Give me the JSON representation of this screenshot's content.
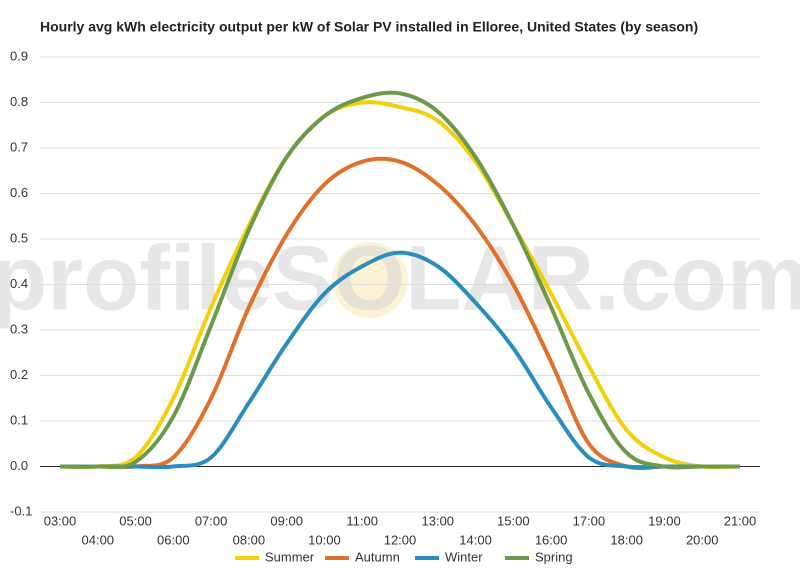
{
  "chart_data": {
    "type": "line",
    "title": "Hourly avg kWh electricity output per kW of Solar PV installed in Elloree, United States (by season)",
    "watermark": "profileSOLAR.com",
    "categories": [
      "03:00",
      "04:00",
      "05:00",
      "06:00",
      "07:00",
      "08:00",
      "09:00",
      "10:00",
      "11:00",
      "12:00",
      "13:00",
      "14:00",
      "15:00",
      "16:00",
      "17:00",
      "18:00",
      "19:00",
      "20:00",
      "21:00"
    ],
    "series": [
      {
        "name": "Summer",
        "color": "#f5cf0a",
        "values": [
          0,
          0,
          0.02,
          0.15,
          0.35,
          0.53,
          0.68,
          0.77,
          0.8,
          0.79,
          0.76,
          0.67,
          0.53,
          0.38,
          0.22,
          0.08,
          0.02,
          0,
          0
        ]
      },
      {
        "name": "Autumn",
        "color": "#e0712a",
        "values": [
          0,
          0,
          0,
          0.02,
          0.15,
          0.35,
          0.51,
          0.62,
          0.67,
          0.67,
          0.62,
          0.53,
          0.4,
          0.23,
          0.05,
          0,
          0,
          0,
          0
        ]
      },
      {
        "name": "Winter",
        "color": "#2a8dbd",
        "values": [
          0,
          0,
          0,
          0,
          0.02,
          0.14,
          0.27,
          0.38,
          0.44,
          0.47,
          0.44,
          0.36,
          0.26,
          0.13,
          0.02,
          0,
          0,
          0,
          0
        ]
      },
      {
        "name": "Spring",
        "color": "#6a9a4a",
        "values": [
          0,
          0,
          0.01,
          0.11,
          0.31,
          0.52,
          0.68,
          0.77,
          0.81,
          0.82,
          0.78,
          0.68,
          0.53,
          0.35,
          0.16,
          0.03,
          0,
          0,
          0
        ]
      }
    ],
    "ylim": [
      -0.1,
      0.9
    ],
    "yticks": [
      -0.1,
      {
        "value": 0,
        "label": "0.0"
      },
      0.1,
      0.2,
      0.3,
      0.4,
      0.5,
      0.6,
      0.7,
      0.8,
      0.9
    ],
    "grid": true
  }
}
